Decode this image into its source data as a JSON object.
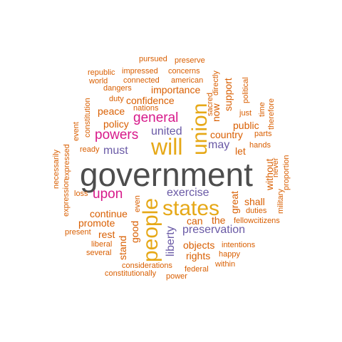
{
  "colors": {
    "dark": "#4d4d4d",
    "gold": "#e6a817",
    "magenta": "#d7198a",
    "purple": "#6a5aa6",
    "orange": "#d95f02"
  },
  "words": [
    {
      "text": "government",
      "color": "#4d4d4d",
      "weight": 10,
      "vertical": false
    },
    {
      "text": "states",
      "color": "#e6a817",
      "weight": 5,
      "vertical": false
    },
    {
      "text": "will",
      "color": "#e6a817",
      "weight": 5,
      "vertical": false
    },
    {
      "text": "people",
      "color": "#e6a817",
      "weight": 5,
      "vertical": true
    },
    {
      "text": "union",
      "color": "#e6a817",
      "weight": 5,
      "vertical": true
    },
    {
      "text": "general",
      "color": "#d7198a",
      "weight": 4,
      "vertical": false
    },
    {
      "text": "powers",
      "color": "#d7198a",
      "weight": 4,
      "vertical": false
    },
    {
      "text": "upon",
      "color": "#d7198a",
      "weight": 4,
      "vertical": false
    },
    {
      "text": "united",
      "color": "#6a5aa6",
      "weight": 3,
      "vertical": false
    },
    {
      "text": "must",
      "color": "#6a5aa6",
      "weight": 3,
      "vertical": false
    },
    {
      "text": "may",
      "color": "#6a5aa6",
      "weight": 3,
      "vertical": false
    },
    {
      "text": "exercise",
      "color": "#6a5aa6",
      "weight": 3,
      "vertical": false
    },
    {
      "text": "preservation",
      "color": "#6a5aa6",
      "weight": 3,
      "vertical": false
    },
    {
      "text": "liberty",
      "color": "#6a5aa6",
      "weight": 3,
      "vertical": true
    },
    {
      "text": "importance",
      "color": "#d95f02",
      "weight": 2,
      "vertical": false
    },
    {
      "text": "confidence",
      "color": "#d95f02",
      "weight": 2,
      "vertical": false
    },
    {
      "text": "peace",
      "color": "#d95f02",
      "weight": 2,
      "vertical": false
    },
    {
      "text": "policy",
      "color": "#d95f02",
      "weight": 2,
      "vertical": false
    },
    {
      "text": "country",
      "color": "#d95f02",
      "weight": 2,
      "vertical": false
    },
    {
      "text": "public",
      "color": "#d95f02",
      "weight": 2,
      "vertical": false
    },
    {
      "text": "let",
      "color": "#d95f02",
      "weight": 2,
      "vertical": false
    },
    {
      "text": "shall",
      "color": "#d95f02",
      "weight": 2,
      "vertical": false
    },
    {
      "text": "can",
      "color": "#d95f02",
      "weight": 2,
      "vertical": false
    },
    {
      "text": "the",
      "color": "#d95f02",
      "weight": 2,
      "vertical": false
    },
    {
      "text": "continue",
      "color": "#d95f02",
      "weight": 2,
      "vertical": false
    },
    {
      "text": "promote",
      "color": "#d95f02",
      "weight": 2,
      "vertical": false
    },
    {
      "text": "rest",
      "color": "#d95f02",
      "weight": 2,
      "vertical": false
    },
    {
      "text": "objects",
      "color": "#d95f02",
      "weight": 2,
      "vertical": false
    },
    {
      "text": "rights",
      "color": "#d95f02",
      "weight": 2,
      "vertical": false
    },
    {
      "text": "support",
      "color": "#d95f02",
      "weight": 2,
      "vertical": true
    },
    {
      "text": "now",
      "color": "#d95f02",
      "weight": 2,
      "vertical": true
    },
    {
      "text": "great",
      "color": "#d95f02",
      "weight": 2,
      "vertical": true
    },
    {
      "text": "without",
      "color": "#d95f02",
      "weight": 2,
      "vertical": true
    },
    {
      "text": "good",
      "color": "#d95f02",
      "weight": 2,
      "vertical": true
    },
    {
      "text": "stand",
      "color": "#d95f02",
      "weight": 2,
      "vertical": true
    },
    {
      "text": "pursued",
      "color": "#d95f02",
      "weight": 1,
      "vertical": false
    },
    {
      "text": "preserve",
      "color": "#d95f02",
      "weight": 1,
      "vertical": false
    },
    {
      "text": "republic",
      "color": "#d95f02",
      "weight": 1,
      "vertical": false
    },
    {
      "text": "impressed",
      "color": "#d95f02",
      "weight": 1,
      "vertical": false
    },
    {
      "text": "concerns",
      "color": "#d95f02",
      "weight": 1,
      "vertical": false
    },
    {
      "text": "world",
      "color": "#d95f02",
      "weight": 1,
      "vertical": false
    },
    {
      "text": "connected",
      "color": "#d95f02",
      "weight": 1,
      "vertical": false
    },
    {
      "text": "american",
      "color": "#d95f02",
      "weight": 1,
      "vertical": false
    },
    {
      "text": "dangers",
      "color": "#d95f02",
      "weight": 1,
      "vertical": false
    },
    {
      "text": "duty",
      "color": "#d95f02",
      "weight": 1,
      "vertical": false
    },
    {
      "text": "nations",
      "color": "#d95f02",
      "weight": 1,
      "vertical": false
    },
    {
      "text": "just",
      "color": "#d95f02",
      "weight": 1,
      "vertical": false
    },
    {
      "text": "parts",
      "color": "#d95f02",
      "weight": 1,
      "vertical": false
    },
    {
      "text": "hands",
      "color": "#d95f02",
      "weight": 1,
      "vertical": false
    },
    {
      "text": "ready",
      "color": "#d95f02",
      "weight": 1,
      "vertical": false
    },
    {
      "text": "loss",
      "color": "#d95f02",
      "weight": 1,
      "vertical": false
    },
    {
      "text": "duties",
      "color": "#d95f02",
      "weight": 1,
      "vertical": false
    },
    {
      "text": "fellowcitizens",
      "color": "#d95f02",
      "weight": 1,
      "vertical": false
    },
    {
      "text": "present",
      "color": "#d95f02",
      "weight": 1,
      "vertical": false
    },
    {
      "text": "liberal",
      "color": "#d95f02",
      "weight": 1,
      "vertical": false
    },
    {
      "text": "intentions",
      "color": "#d95f02",
      "weight": 1,
      "vertical": false
    },
    {
      "text": "several",
      "color": "#d95f02",
      "weight": 1,
      "vertical": false
    },
    {
      "text": "happy",
      "color": "#d95f02",
      "weight": 1,
      "vertical": false
    },
    {
      "text": "within",
      "color": "#d95f02",
      "weight": 1,
      "vertical": false
    },
    {
      "text": "considerations",
      "color": "#d95f02",
      "weight": 1,
      "vertical": false
    },
    {
      "text": "federal",
      "color": "#d95f02",
      "weight": 1,
      "vertical": false
    },
    {
      "text": "constitutionally",
      "color": "#d95f02",
      "weight": 1,
      "vertical": false
    },
    {
      "text": "power",
      "color": "#d95f02",
      "weight": 1,
      "vertical": false
    },
    {
      "text": "directly",
      "color": "#d95f02",
      "weight": 1,
      "vertical": true
    },
    {
      "text": "sacred",
      "color": "#d95f02",
      "weight": 1,
      "vertical": true
    },
    {
      "text": "political",
      "color": "#d95f02",
      "weight": 1,
      "vertical": true
    },
    {
      "text": "time",
      "color": "#d95f02",
      "weight": 1,
      "vertical": true
    },
    {
      "text": "therefore",
      "color": "#d95f02",
      "weight": 1,
      "vertical": true
    },
    {
      "text": "constitution",
      "color": "#d95f02",
      "weight": 1,
      "vertical": true
    },
    {
      "text": "event",
      "color": "#d95f02",
      "weight": 1,
      "vertical": true
    },
    {
      "text": "necessarily",
      "color": "#d95f02",
      "weight": 1,
      "vertical": true
    },
    {
      "text": "expressed",
      "color": "#d95f02",
      "weight": 1,
      "vertical": true
    },
    {
      "text": "expression",
      "color": "#d95f02",
      "weight": 1,
      "vertical": true
    },
    {
      "text": "even",
      "color": "#d95f02",
      "weight": 1,
      "vertical": true
    },
    {
      "text": "never",
      "color": "#d95f02",
      "weight": 1,
      "vertical": true
    },
    {
      "text": "proportion",
      "color": "#d95f02",
      "weight": 1,
      "vertical": true
    },
    {
      "text": "military",
      "color": "#d95f02",
      "weight": 1,
      "vertical": true
    }
  ]
}
